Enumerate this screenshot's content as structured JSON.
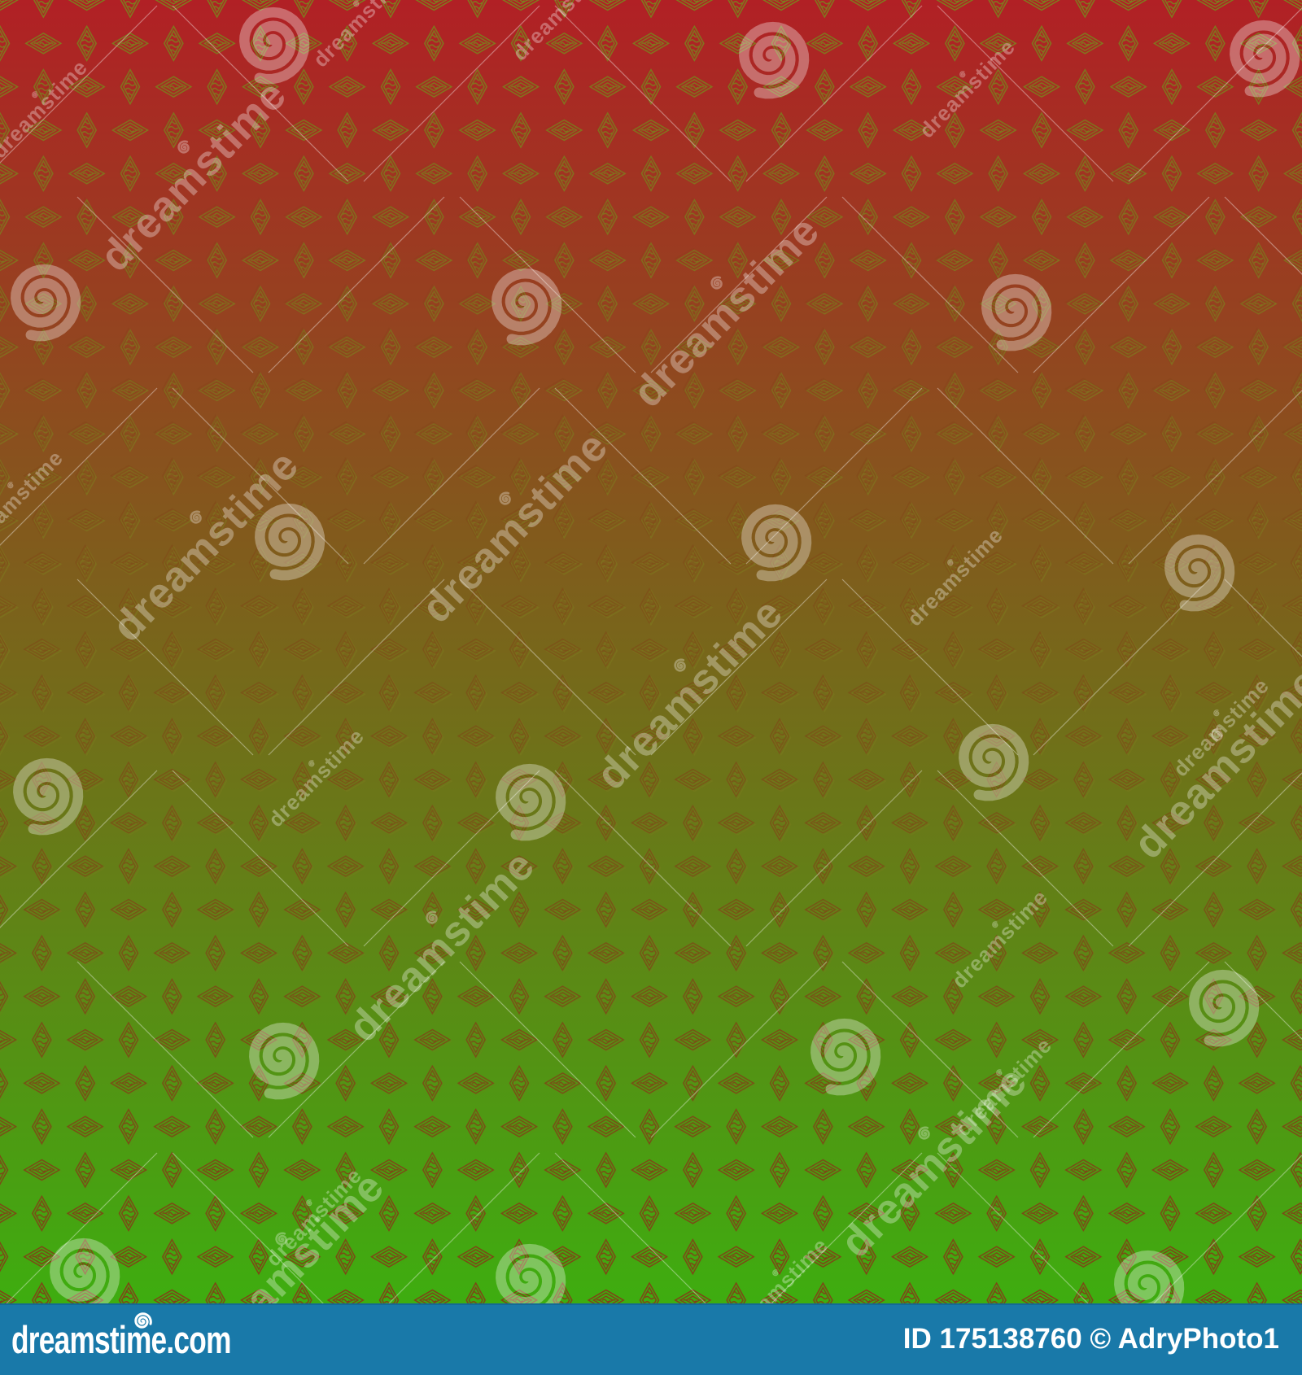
{
  "watermark": {
    "brand_text": "dreamstime",
    "color": "#ffffff"
  },
  "footer": {
    "logo_text": "dreamstime.com",
    "credit_text": "ID 175138760 © AdryPhoto1",
    "bar_color": "#1979a9",
    "text_color": "#ffffff"
  },
  "colors": {
    "gradient_top": "#b12025",
    "gradient_bottom": "#3ead10",
    "pattern_stroke_green": "#7e7c1e",
    "pattern_stroke_red": "#804216"
  }
}
